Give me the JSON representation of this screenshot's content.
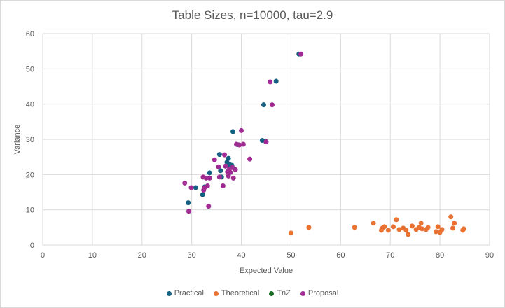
{
  "chart_data": {
    "type": "scatter",
    "title": "Table Sizes, n=10000, tau=2.9",
    "xlabel": "Expected Value",
    "ylabel": "Variance",
    "xlim": [
      0,
      90
    ],
    "ylim": [
      0,
      60
    ],
    "xticks": [
      0,
      10,
      20,
      30,
      40,
      50,
      60,
      70,
      80,
      90
    ],
    "yticks": [
      0,
      10,
      20,
      30,
      40,
      50,
      60
    ],
    "grid": true,
    "legend_position": "bottom",
    "series": [
      {
        "name": "Practical",
        "color": "#156082",
        "points": [
          [
            29.3,
            12.0
          ],
          [
            30.8,
            16.3
          ],
          [
            32.2,
            14.3
          ],
          [
            32.6,
            16.5
          ],
          [
            33.6,
            20.5
          ],
          [
            35.6,
            25.7
          ],
          [
            35.8,
            21.1
          ],
          [
            36.0,
            19.3
          ],
          [
            36.8,
            22.4
          ],
          [
            37.1,
            23.5
          ],
          [
            37.4,
            24.6
          ],
          [
            37.7,
            22.8
          ],
          [
            38.1,
            22.6
          ],
          [
            38.3,
            32.2
          ],
          [
            39.2,
            28.5
          ],
          [
            44.2,
            29.7
          ],
          [
            44.5,
            39.8
          ],
          [
            44.9,
            29.4
          ],
          [
            47.0,
            46.5
          ],
          [
            51.6,
            54.2
          ]
        ]
      },
      {
        "name": "Theoretical",
        "color": "#E97132",
        "points": [
          [
            50.0,
            3.4
          ],
          [
            53.6,
            5.0
          ],
          [
            62.8,
            5.0
          ],
          [
            66.6,
            6.2
          ],
          [
            68.2,
            4.2
          ],
          [
            68.4,
            4.8
          ],
          [
            68.8,
            5.2
          ],
          [
            69.6,
            4.2
          ],
          [
            70.6,
            5.2
          ],
          [
            71.2,
            7.2
          ],
          [
            71.8,
            4.4
          ],
          [
            72.6,
            4.8
          ],
          [
            73.2,
            4.2
          ],
          [
            73.6,
            3.0
          ],
          [
            74.4,
            5.4
          ],
          [
            75.2,
            4.4
          ],
          [
            75.8,
            5.0
          ],
          [
            76.2,
            6.2
          ],
          [
            76.4,
            4.6
          ],
          [
            77.2,
            4.4
          ],
          [
            77.6,
            5.0
          ],
          [
            79.2,
            3.8
          ],
          [
            79.6,
            5.2
          ],
          [
            80.0,
            3.6
          ],
          [
            80.4,
            4.4
          ],
          [
            82.2,
            8.0
          ],
          [
            82.6,
            4.8
          ],
          [
            82.9,
            6.2
          ],
          [
            84.6,
            4.2
          ],
          [
            84.8,
            4.6
          ]
        ]
      },
      {
        "name": "TnZ",
        "color": "#196B24",
        "points": []
      },
      {
        "name": "Proposal",
        "color": "#A02B93",
        "points": [
          [
            28.6,
            17.6
          ],
          [
            29.4,
            9.6
          ],
          [
            29.9,
            16.3
          ],
          [
            32.3,
            19.3
          ],
          [
            32.4,
            15.6
          ],
          [
            32.6,
            16.3
          ],
          [
            32.9,
            19.0
          ],
          [
            33.2,
            16.8
          ],
          [
            33.4,
            11.0
          ],
          [
            33.6,
            19.0
          ],
          [
            34.6,
            24.2
          ],
          [
            35.4,
            22.2
          ],
          [
            35.6,
            19.3
          ],
          [
            36.3,
            16.8
          ],
          [
            36.6,
            25.6
          ],
          [
            36.8,
            22.4
          ],
          [
            37.2,
            20.8
          ],
          [
            37.4,
            19.6
          ],
          [
            37.6,
            21.6
          ],
          [
            37.8,
            20.6
          ],
          [
            38.2,
            22.0
          ],
          [
            38.4,
            19.0
          ],
          [
            38.8,
            21.4
          ],
          [
            39.0,
            28.6
          ],
          [
            39.6,
            28.4
          ],
          [
            40.0,
            32.5
          ],
          [
            40.4,
            28.6
          ],
          [
            41.7,
            24.4
          ],
          [
            45.0,
            29.3
          ],
          [
            45.8,
            46.3
          ],
          [
            46.2,
            39.8
          ],
          [
            52.0,
            54.2
          ]
        ]
      }
    ]
  }
}
